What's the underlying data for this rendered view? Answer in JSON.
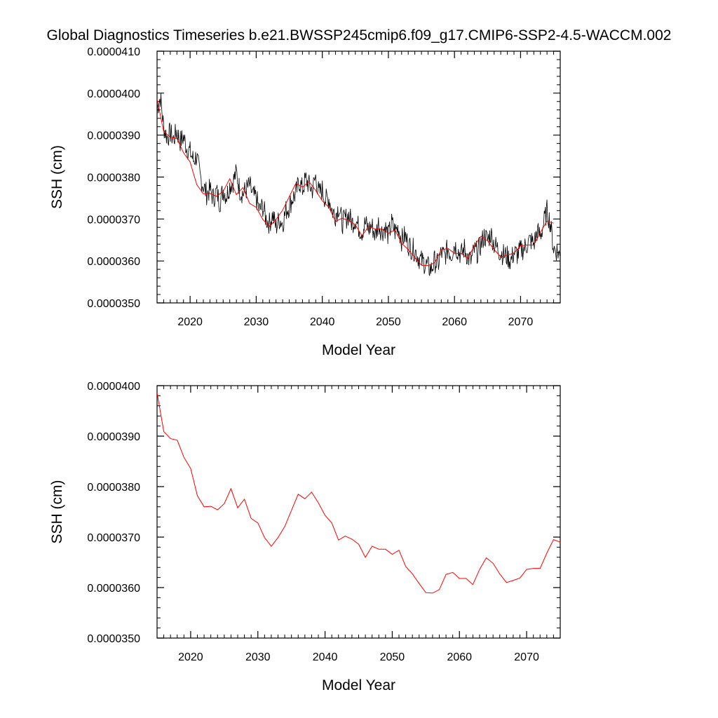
{
  "figure": {
    "title": "Global Diagnostics Timeseries b.e21.BWSSP245cmip6.f09_g17.CMIP6-SSP2-4.5-WACCM.002"
  },
  "chart_data": [
    {
      "type": "line",
      "title": "",
      "xlabel": "Model Year",
      "ylabel": "SSH (cm)",
      "xlim": [
        2015,
        2076
      ],
      "ylim": [
        3.5e-05,
        4.1e-05
      ],
      "x_ticks": [
        2020,
        2030,
        2040,
        2050,
        2060,
        2070
      ],
      "x_tick_labels": [
        "2020",
        "2030",
        "2040",
        "2050",
        "2060",
        "2070"
      ],
      "y_ticks": [
        3.5e-05,
        3.6e-05,
        3.7e-05,
        3.8e-05,
        3.9e-05,
        4e-05,
        4.1e-05
      ],
      "y_tick_labels": [
        "0.0000350",
        "0.0000360",
        "0.0000370",
        "0.0000380",
        "0.0000390",
        "0.0000400",
        "0.0000410"
      ],
      "grid": false,
      "legend": "none",
      "series": [
        {
          "style": "monthly",
          "color": "#000000",
          "x": [
            2015.0,
            2015.5,
            2016.0,
            2016.5,
            2017.0,
            2017.5,
            2018.0,
            2018.5,
            2019.0,
            2019.5,
            2020.0,
            2020.5,
            2021.0,
            2021.5,
            2022.0,
            2022.5,
            2023.0,
            2023.5,
            2024.0,
            2024.5,
            2025.0,
            2025.5,
            2026.0,
            2026.5,
            2027.0,
            2027.5,
            2028.0,
            2028.5,
            2029.0,
            2029.5,
            2030.0,
            2030.5,
            2031.0,
            2031.5,
            2032.0,
            2032.5,
            2033.0,
            2033.5,
            2034.0,
            2034.5,
            2035.0,
            2035.5,
            2036.0,
            2036.5,
            2037.0,
            2037.5,
            2038.0,
            2038.5,
            2039.0,
            2039.5,
            2040.0,
            2040.5,
            2041.0,
            2041.5,
            2042.0,
            2042.5,
            2043.0,
            2043.5,
            2044.0,
            2044.5,
            2045.0,
            2045.5,
            2046.0,
            2046.5,
            2047.0,
            2047.5,
            2048.0,
            2048.5,
            2049.0,
            2049.5,
            2050.0,
            2050.5,
            2051.0,
            2051.5,
            2052.0,
            2052.5,
            2053.0,
            2053.5,
            2054.0,
            2054.5,
            2055.0,
            2055.5,
            2056.0,
            2056.5,
            2057.0,
            2057.5,
            2058.0,
            2058.5,
            2059.0,
            2059.5,
            2060.0,
            2060.5,
            2061.0,
            2061.5,
            2062.0,
            2062.5,
            2063.0,
            2063.5,
            2064.0,
            2064.5,
            2065.0,
            2065.5,
            2066.0,
            2066.5,
            2067.0,
            2067.5,
            2068.0,
            2068.5,
            2069.0,
            2069.5,
            2070.0,
            2070.5,
            2071.0,
            2071.5,
            2072.0,
            2072.5,
            2073.0,
            2073.5,
            2074.0,
            2074.5,
            2075.0,
            2075.5,
            2076.0
          ],
          "values": [
            3.965e-05,
            3.99e-05,
            3.92e-05,
            3.895e-05,
            3.905e-05,
            3.89e-05,
            3.91e-05,
            3.885e-05,
            3.895e-05,
            3.87e-05,
            3.86e-05,
            3.84e-05,
            3.85e-05,
            3.8e-05,
            3.78e-05,
            3.76e-05,
            3.77e-05,
            3.75e-05,
            3.765e-05,
            3.74e-05,
            3.77e-05,
            3.755e-05,
            3.78e-05,
            3.79e-05,
            3.81e-05,
            3.77e-05,
            3.76e-05,
            3.77e-05,
            3.78e-05,
            3.755e-05,
            3.75e-05,
            3.72e-05,
            3.73e-05,
            3.7e-05,
            3.69e-05,
            3.71e-05,
            3.68e-05,
            3.7e-05,
            3.69e-05,
            3.72e-05,
            3.73e-05,
            3.75e-05,
            3.76e-05,
            3.79e-05,
            3.77e-05,
            3.795e-05,
            3.78e-05,
            3.77e-05,
            3.8e-05,
            3.76e-05,
            3.77e-05,
            3.745e-05,
            3.75e-05,
            3.72e-05,
            3.71e-05,
            3.73e-05,
            3.69e-05,
            3.7e-05,
            3.71e-05,
            3.69e-05,
            3.7e-05,
            3.68e-05,
            3.67e-05,
            3.69e-05,
            3.675e-05,
            3.685e-05,
            3.66e-05,
            3.69e-05,
            3.67e-05,
            3.68e-05,
            3.66e-05,
            3.69e-05,
            3.67e-05,
            3.68e-05,
            3.65e-05,
            3.66e-05,
            3.64e-05,
            3.63e-05,
            3.625e-05,
            3.61e-05,
            3.6e-05,
            3.595e-05,
            3.585e-05,
            3.58e-05,
            3.6e-05,
            3.59e-05,
            3.62e-05,
            3.61e-05,
            3.63e-05,
            3.615e-05,
            3.64e-05,
            3.625e-05,
            3.615e-05,
            3.63e-05,
            3.61e-05,
            3.6e-05,
            3.625e-05,
            3.62e-05,
            3.64e-05,
            3.66e-05,
            3.65e-05,
            3.665e-05,
            3.64e-05,
            3.63e-05,
            3.62e-05,
            3.615e-05,
            3.61e-05,
            3.6e-05,
            3.62e-05,
            3.615e-05,
            3.625e-05,
            3.63e-05,
            3.64e-05,
            3.65e-05,
            3.64e-05,
            3.67e-05,
            3.66e-05,
            3.69e-05,
            3.72e-05,
            3.69e-05,
            3.63e-05,
            3.625e-05,
            3.61e-05
          ]
        },
        {
          "style": "annual",
          "color": "#ff0000",
          "x": [
            2015,
            2016,
            2017,
            2018,
            2019,
            2020,
            2021,
            2022,
            2023,
            2024,
            2025,
            2026,
            2027,
            2028,
            2029,
            2030,
            2031,
            2032,
            2033,
            2034,
            2035,
            2036,
            2037,
            2038,
            2039,
            2040,
            2041,
            2042,
            2043,
            2044,
            2045,
            2046,
            2047,
            2048,
            2049,
            2050,
            2051,
            2052,
            2053,
            2054,
            2055,
            2056,
            2057,
            2058,
            2059,
            2060,
            2061,
            2062,
            2063,
            2064,
            2065,
            2066,
            2067,
            2068,
            2069,
            2070,
            2071,
            2072,
            2073,
            2074,
            2075
          ],
          "values": [
            3.986e-05,
            3.909e-05,
            3.895e-05,
            3.892e-05,
            3.858e-05,
            3.836e-05,
            3.782e-05,
            3.76e-05,
            3.761e-05,
            3.754e-05,
            3.766e-05,
            3.796e-05,
            3.758e-05,
            3.775e-05,
            3.737e-05,
            3.728e-05,
            3.699e-05,
            3.682e-05,
            3.699e-05,
            3.721e-05,
            3.753e-05,
            3.785e-05,
            3.776e-05,
            3.789e-05,
            3.768e-05,
            3.743e-05,
            3.728e-05,
            3.694e-05,
            3.702e-05,
            3.696e-05,
            3.686e-05,
            3.66e-05,
            3.682e-05,
            3.676e-05,
            3.676e-05,
            3.666e-05,
            3.674e-05,
            3.642e-05,
            3.627e-05,
            3.608e-05,
            3.59e-05,
            3.589e-05,
            3.596e-05,
            3.626e-05,
            3.63e-05,
            3.618e-05,
            3.618e-05,
            3.606e-05,
            3.636e-05,
            3.659e-05,
            3.648e-05,
            3.627e-05,
            3.61e-05,
            3.614e-05,
            3.619e-05,
            3.636e-05,
            3.638e-05,
            3.638e-05,
            3.668e-05,
            3.695e-05,
            3.69e-05
          ]
        }
      ]
    },
    {
      "type": "line",
      "title": "",
      "xlabel": "Model Year",
      "ylabel": "SSH (cm)",
      "xlim": [
        2015,
        2075
      ],
      "ylim": [
        3.5e-05,
        4e-05
      ],
      "x_ticks": [
        2020,
        2030,
        2040,
        2050,
        2060,
        2070
      ],
      "x_tick_labels": [
        "2020",
        "2030",
        "2040",
        "2050",
        "2060",
        "2070"
      ],
      "y_ticks": [
        3.5e-05,
        3.6e-05,
        3.7e-05,
        3.8e-05,
        3.9e-05,
        4e-05
      ],
      "y_tick_labels": [
        "0.0000350",
        "0.0000360",
        "0.0000370",
        "0.0000380",
        "0.0000390",
        "0.0000400"
      ],
      "grid": false,
      "legend": "none",
      "series": [
        {
          "style": "annual",
          "color": "#ff0000",
          "x": [
            2015,
            2016,
            2017,
            2018,
            2019,
            2020,
            2021,
            2022,
            2023,
            2024,
            2025,
            2026,
            2027,
            2028,
            2029,
            2030,
            2031,
            2032,
            2033,
            2034,
            2035,
            2036,
            2037,
            2038,
            2039,
            2040,
            2041,
            2042,
            2043,
            2044,
            2045,
            2046,
            2047,
            2048,
            2049,
            2050,
            2051,
            2052,
            2053,
            2054,
            2055,
            2056,
            2057,
            2058,
            2059,
            2060,
            2061,
            2062,
            2063,
            2064,
            2065,
            2066,
            2067,
            2068,
            2069,
            2070,
            2071,
            2072,
            2073,
            2074,
            2075
          ],
          "values": [
            3.986e-05,
            3.909e-05,
            3.895e-05,
            3.892e-05,
            3.858e-05,
            3.836e-05,
            3.782e-05,
            3.76e-05,
            3.761e-05,
            3.754e-05,
            3.766e-05,
            3.796e-05,
            3.758e-05,
            3.775e-05,
            3.737e-05,
            3.728e-05,
            3.699e-05,
            3.682e-05,
            3.699e-05,
            3.721e-05,
            3.753e-05,
            3.785e-05,
            3.776e-05,
            3.789e-05,
            3.768e-05,
            3.743e-05,
            3.728e-05,
            3.694e-05,
            3.702e-05,
            3.696e-05,
            3.686e-05,
            3.66e-05,
            3.682e-05,
            3.676e-05,
            3.676e-05,
            3.666e-05,
            3.674e-05,
            3.642e-05,
            3.627e-05,
            3.608e-05,
            3.59e-05,
            3.589e-05,
            3.596e-05,
            3.626e-05,
            3.63e-05,
            3.618e-05,
            3.618e-05,
            3.606e-05,
            3.636e-05,
            3.659e-05,
            3.648e-05,
            3.627e-05,
            3.61e-05,
            3.614e-05,
            3.619e-05,
            3.636e-05,
            3.638e-05,
            3.638e-05,
            3.668e-05,
            3.695e-05,
            3.69e-05
          ]
        }
      ]
    }
  ]
}
